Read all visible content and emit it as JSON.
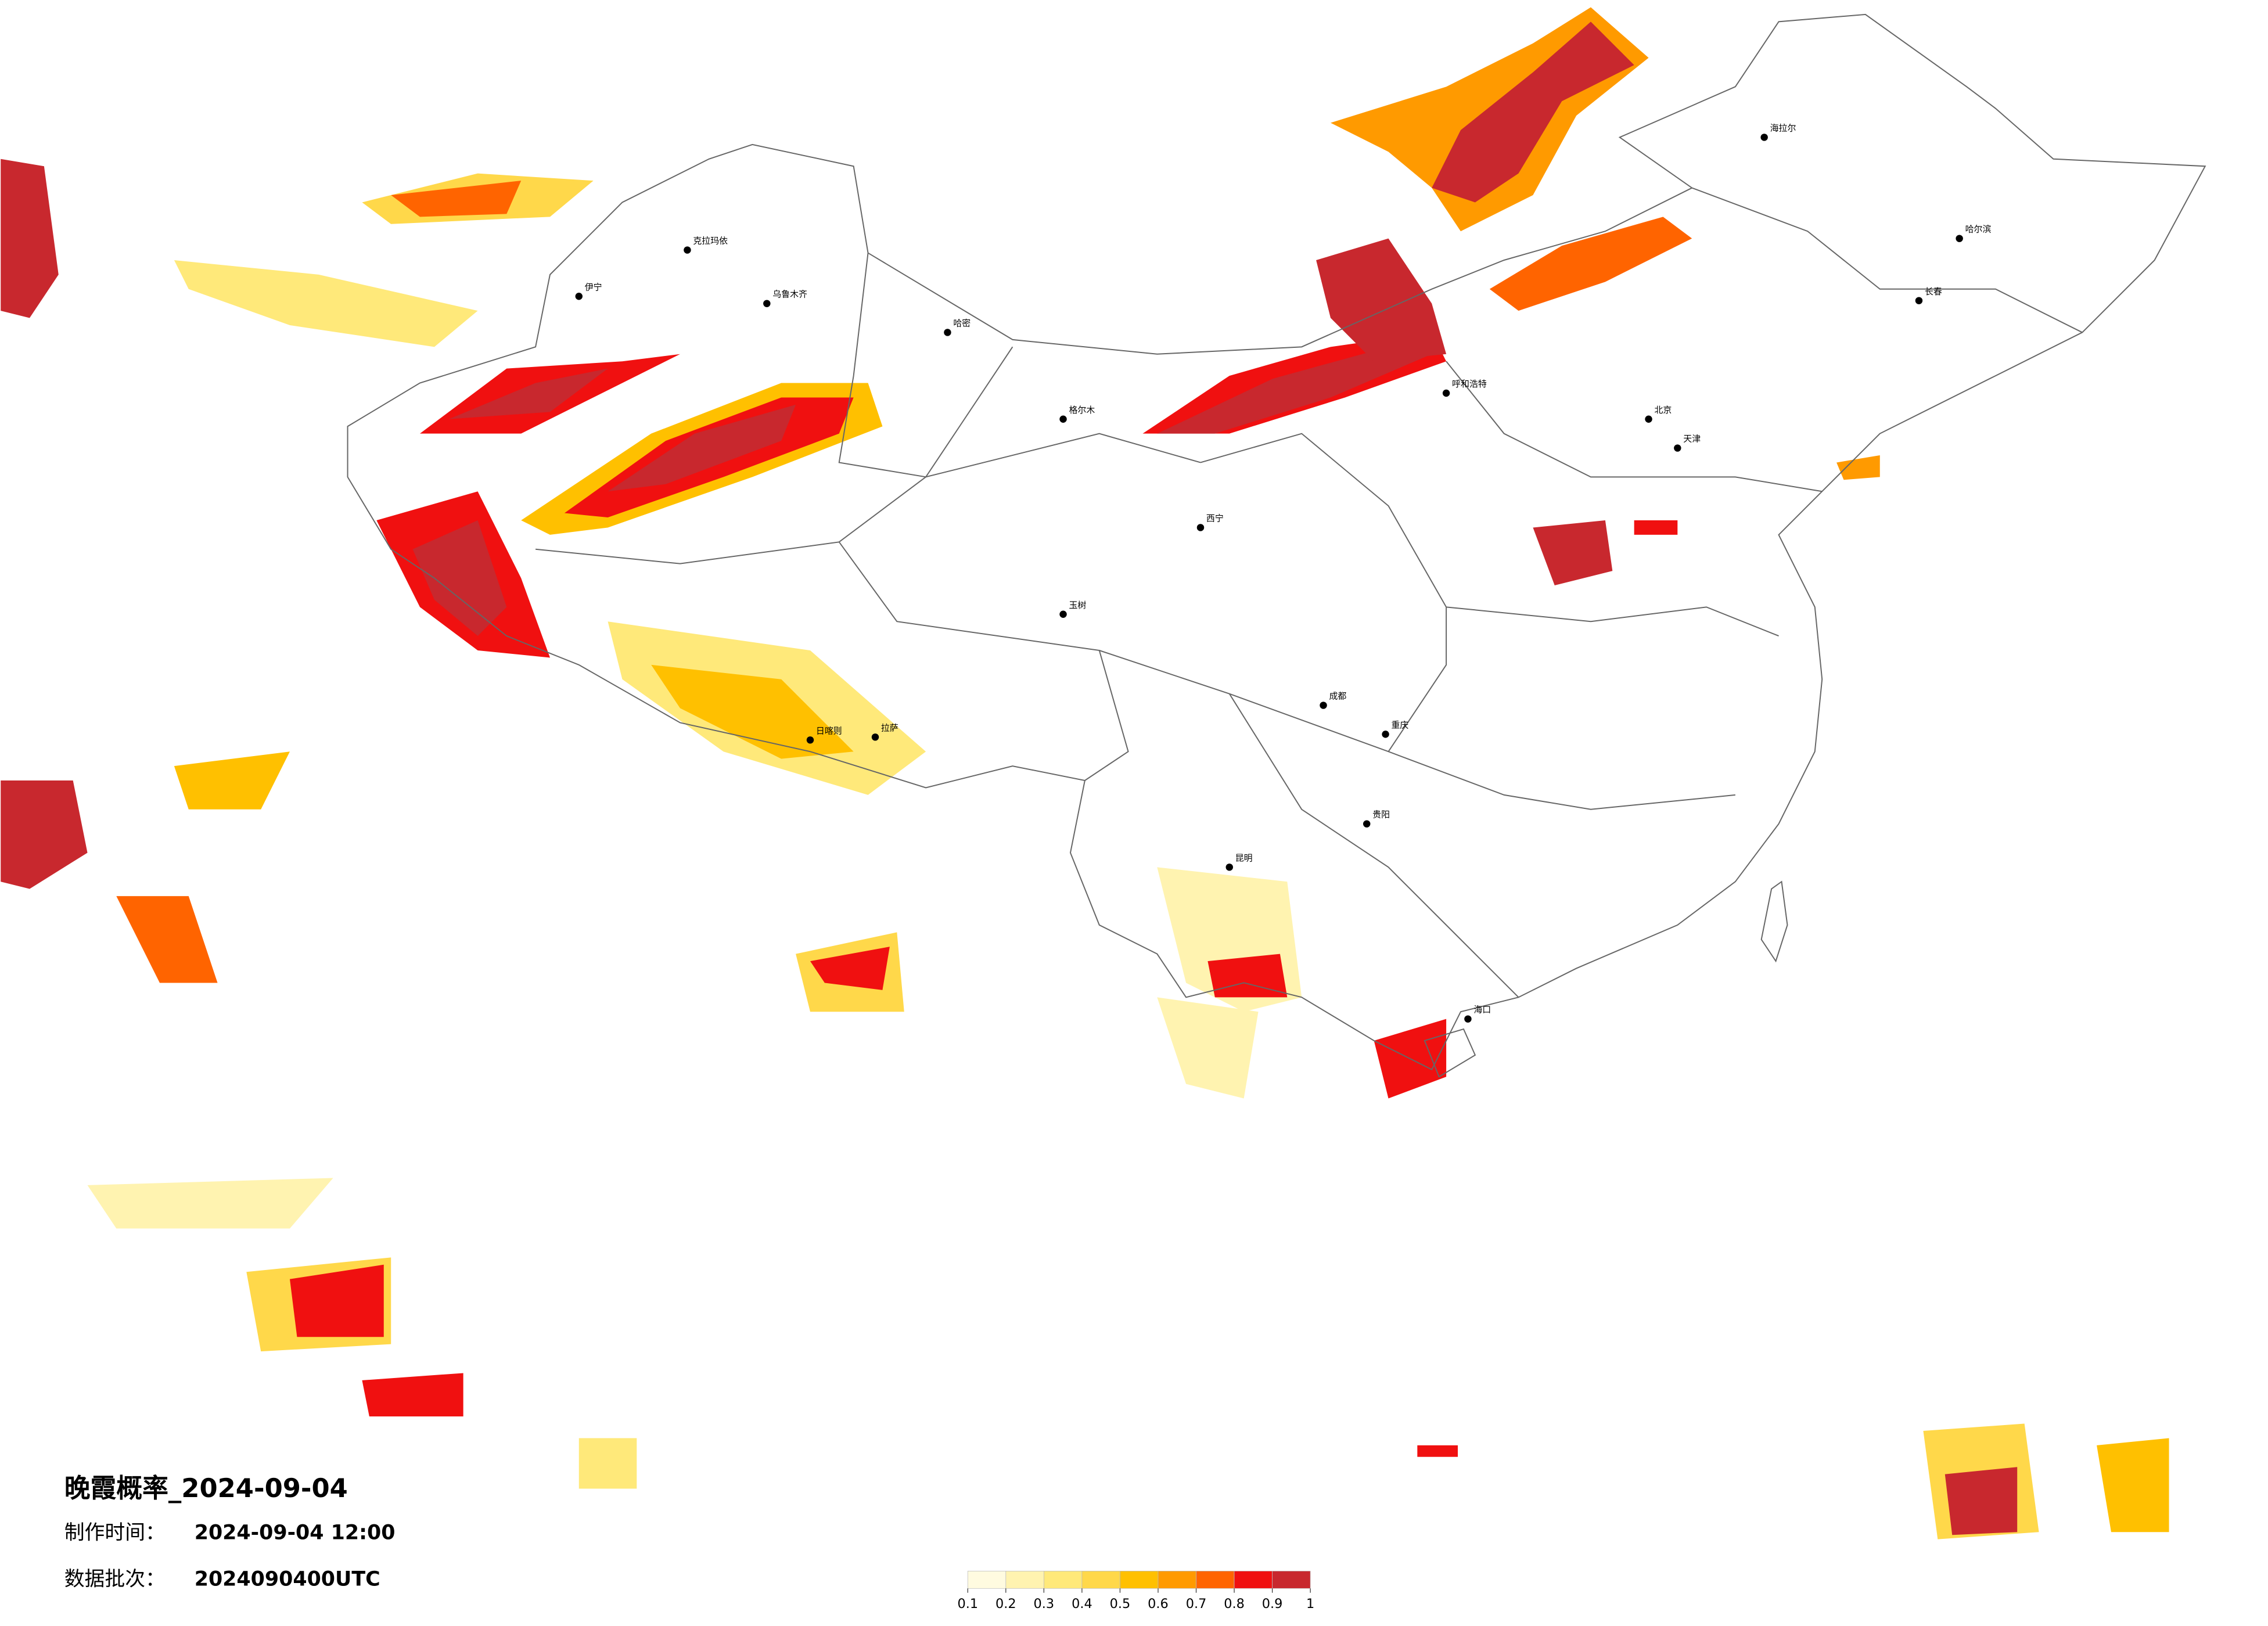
{
  "map": {
    "title": "晚霞概率_2024-09-04",
    "made_label": "制作时间：",
    "made_value": "2024-09-04 12:00",
    "batch_label": "数据批次：",
    "batch_value": "2024090400UTC",
    "colorbar": {
      "ticks": [
        0.1,
        0.2,
        0.3,
        0.4,
        0.5,
        0.6,
        0.7,
        0.8,
        0.9,
        1
      ],
      "colors": [
        "#fffbe0",
        "#fff3b0",
        "#ffe97a",
        "#ffd84a",
        "#ffc000",
        "#ff9a00",
        "#ff6400",
        "#f01010",
        "#c8282e"
      ]
    },
    "cities": [
      {
        "name": "克拉玛依"
      },
      {
        "name": "乌鲁木齐"
      },
      {
        "name": "哈密"
      },
      {
        "name": "伊宁"
      },
      {
        "name": "拉萨"
      },
      {
        "name": "日喀则"
      },
      {
        "name": "西宁"
      },
      {
        "name": "呼和浩特"
      },
      {
        "name": "北京"
      },
      {
        "name": "哈尔滨"
      },
      {
        "name": "长春"
      },
      {
        "name": "海拉尔"
      },
      {
        "name": "成都"
      },
      {
        "name": "重庆"
      },
      {
        "name": "昆明"
      },
      {
        "name": "贵阳"
      },
      {
        "name": "海口"
      },
      {
        "name": "格尔木"
      },
      {
        "name": "玉树"
      },
      {
        "name": "天津"
      }
    ]
  }
}
